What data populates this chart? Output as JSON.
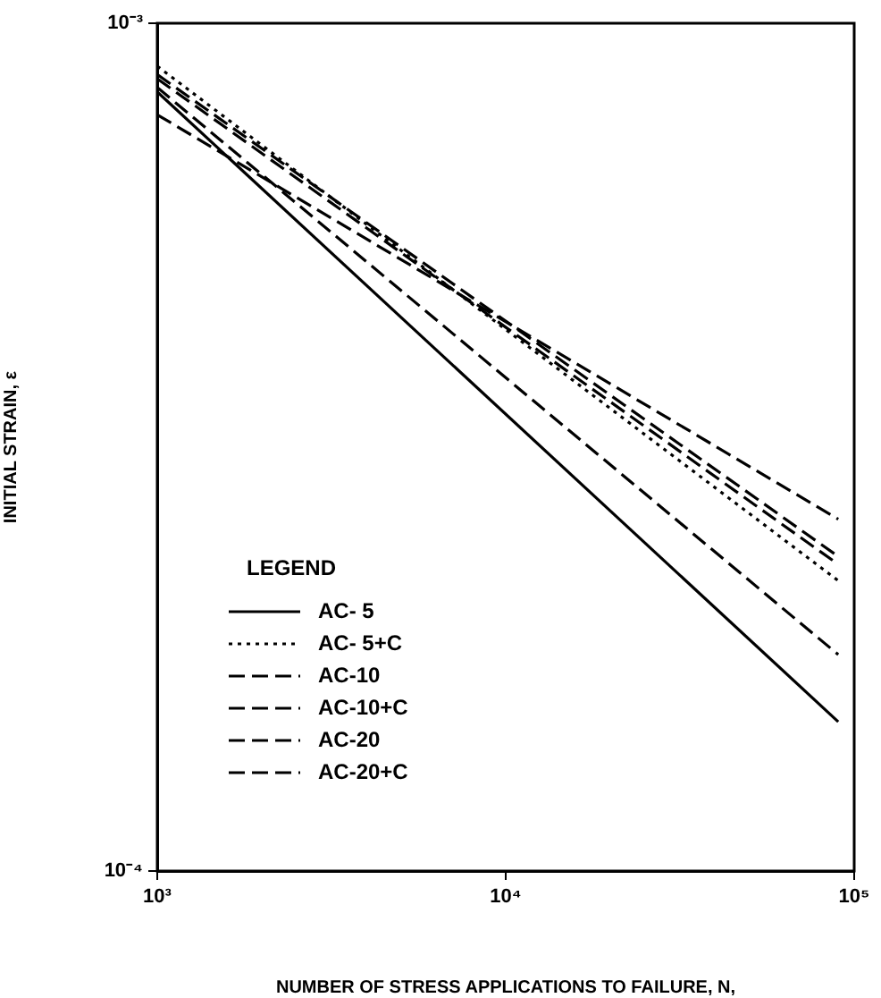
{
  "chart_data": {
    "type": "line",
    "xlabel": "NUMBER OF STRESS APPLICATIONS TO FAILURE, N,",
    "ylabel": "INITIAL STRAIN, ε",
    "legend_title": "LEGEND",
    "legend": "bottom left",
    "log": "xy",
    "grid": false,
    "marker": "none",
    "xlim": [
      1000,
      100000
    ],
    "xticks": [
      {
        "value": 1000,
        "label": "10³"
      },
      {
        "value": 10000,
        "label": "10⁴"
      },
      {
        "value": 100000,
        "label": "10⁵"
      }
    ],
    "ylim": [
      0.0001,
      0.001
    ],
    "yticks": [
      {
        "value": 0.0001,
        "label": "10⁻⁴"
      },
      {
        "value": 0.001,
        "label": "10⁻³"
      }
    ],
    "x": [
      1000,
      90000
    ],
    "series": [
      {
        "name": "AC- 5",
        "color": "#000000",
        "line_style": "solid",
        "values": [
          0.00083,
          0.00015
        ]
      },
      {
        "name": "AC- 5+C",
        "color": "#000000",
        "line_style": "dotted",
        "values": [
          0.00089,
          0.00022
        ]
      },
      {
        "name": "AC-10",
        "color": "#000000",
        "line_style": "dashed",
        "values": [
          0.00084,
          0.00018
        ]
      },
      {
        "name": "AC-10+C",
        "color": "#000000",
        "line_style": "dashed",
        "values": [
          0.00078,
          0.00026
        ]
      },
      {
        "name": "AC-20",
        "color": "#000000",
        "line_style": "dashed",
        "values": [
          0.00086,
          0.00023
        ]
      },
      {
        "name": "AC-20+C",
        "color": "#000000",
        "line_style": "dashed",
        "values": [
          0.00087,
          0.000235
        ]
      }
    ]
  }
}
